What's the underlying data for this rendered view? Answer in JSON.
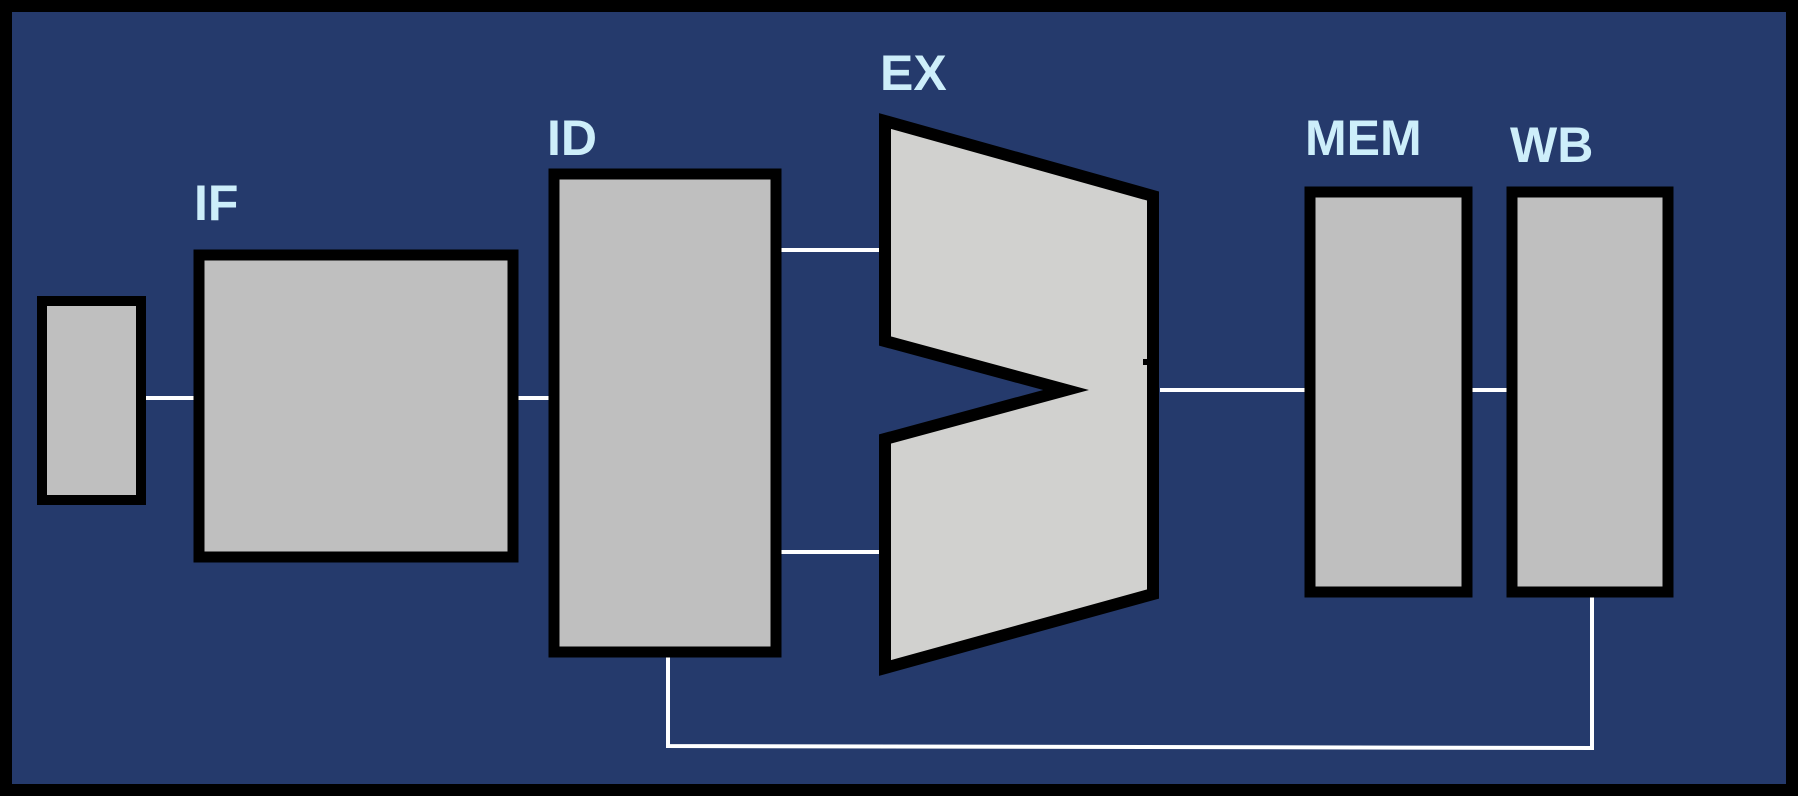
{
  "stages": {
    "if": "IF",
    "id": "ID",
    "ex": "EX",
    "mem": "MEM",
    "wb": "WB"
  },
  "colors": {
    "background": "#253a6c",
    "frame": "#000000",
    "block_fill": "#bfbfbf",
    "alu_fill": "#d1d1cf",
    "outline": "#000000",
    "wire": "#ffffff",
    "label": "#cdeefa"
  }
}
